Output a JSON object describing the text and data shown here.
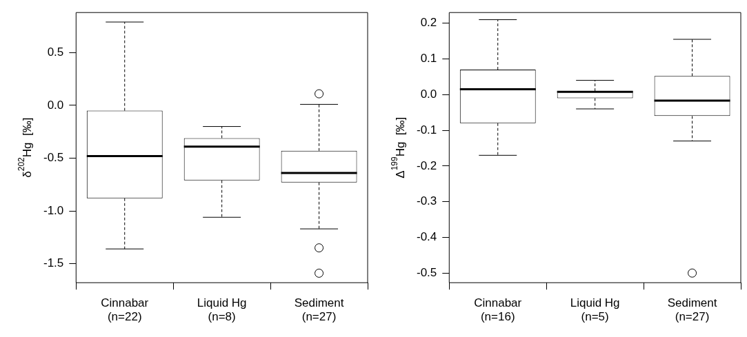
{
  "chart_data": [
    {
      "type": "box",
      "ylabel": "δ$^{202}$Hg  [‰]",
      "categories": [
        "Cinnabar\n(n=22)",
        "Liquid Hg\n(n=8)",
        "Sediment\n(n=27)"
      ],
      "ylim": [
        -1.68,
        0.88
      ],
      "yticks": [
        {
          "value": 0.5,
          "label": "0.5"
        },
        {
          "value": 0,
          "label": "0.0"
        },
        {
          "value": -0.5,
          "label": "-0.5"
        },
        {
          "value": -1,
          "label": "-1.0"
        },
        {
          "value": -1.5,
          "label": "-1.5"
        }
      ],
      "boxes": [
        {
          "low": -1.36,
          "q1": -0.88,
          "median": -0.48,
          "q3": -0.05,
          "high": 0.79
        },
        {
          "low": -1.06,
          "q1": -0.71,
          "median": -0.39,
          "q3": -0.31,
          "high": -0.2
        },
        {
          "low": -1.17,
          "q1": -0.73,
          "median": -0.64,
          "q3": -0.43,
          "high": 0.01,
          "outliers": [
            0.11,
            -1.35,
            -1.59
          ]
        }
      ]
    },
    {
      "type": "box",
      "ylabel": "Δ$^{199}$Hg  [‰]",
      "categories": [
        "Cinnabar\n(n=16)",
        "Liquid Hg\n(n=5)",
        "Sediment\n(n=27)"
      ],
      "ylim": [
        -0.527,
        0.23
      ],
      "yticks": [
        {
          "value": 0.2,
          "label": "0.2"
        },
        {
          "value": 0.1,
          "label": "0.1"
        },
        {
          "value": 0,
          "label": "0.0"
        },
        {
          "value": -0.1,
          "label": "-0.1"
        },
        {
          "value": -0.2,
          "label": "-0.2"
        },
        {
          "value": -0.3,
          "label": "-0.3"
        },
        {
          "value": -0.4,
          "label": "-0.4"
        },
        {
          "value": -0.5,
          "label": "-0.5"
        }
      ],
      "boxes": [
        {
          "low": -0.17,
          "q1": -0.08,
          "median": 0.015,
          "q3": 0.07,
          "high": 0.21
        },
        {
          "low": -0.04,
          "q1": -0.01,
          "median": 0.008,
          "q3": 0.01,
          "high": 0.04
        },
        {
          "low": -0.13,
          "q1": -0.06,
          "median": -0.017,
          "q3": 0.052,
          "high": 0.155,
          "outliers": [
            -0.5
          ]
        }
      ]
    }
  ]
}
